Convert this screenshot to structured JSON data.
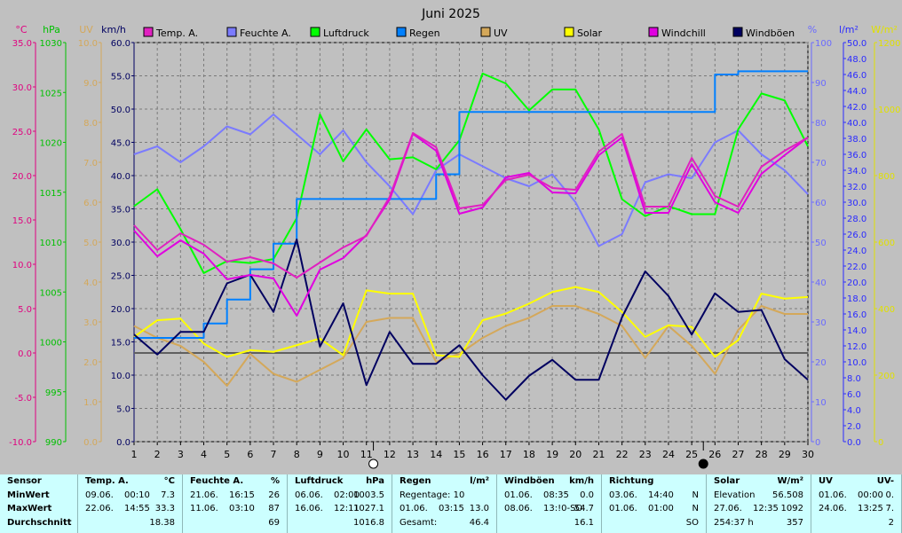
{
  "chart_data": {
    "type": "line",
    "title": "Juni 2025",
    "x": [
      1,
      2,
      3,
      4,
      5,
      6,
      7,
      8,
      9,
      10,
      11,
      12,
      13,
      14,
      15,
      16,
      17,
      18,
      19,
      20,
      21,
      22,
      23,
      24,
      25,
      26,
      27,
      28,
      29,
      30
    ],
    "xlim": [
      1,
      30
    ],
    "markers": [
      {
        "x": 11.3,
        "symbol": "open-circle"
      },
      {
        "x": 25.5,
        "symbol": "filled-circle"
      }
    ],
    "axes": [
      {
        "id": "temp",
        "unit": "°C",
        "min": -10,
        "max": 35,
        "step": 5,
        "decimals": 1,
        "color": "#e0007f"
      },
      {
        "id": "hpa",
        "unit": "hPa",
        "min": 990,
        "max": 1030,
        "step": 5,
        "decimals": 0,
        "color": "#00c000"
      },
      {
        "id": "uv",
        "unit": "UV",
        "min": 0,
        "max": 10,
        "step": 1,
        "decimals": 1,
        "color": "#d4a85a"
      },
      {
        "id": "kmh",
        "unit": "km/h",
        "min": 0,
        "max": 60,
        "step": 5,
        "decimals": 1,
        "color": "#000060"
      },
      {
        "id": "pct",
        "unit": "%",
        "min": 0,
        "max": 100,
        "step": 10,
        "decimals": 0,
        "color": "#6a6aff"
      },
      {
        "id": "rain",
        "unit": "l/m²",
        "min": 0,
        "max": 50,
        "step": 2,
        "decimals": 1,
        "color": "#2a2aff"
      },
      {
        "id": "solar",
        "unit": "W/m²",
        "min": 0,
        "max": 1200,
        "step": 200,
        "decimals": 0,
        "color": "#e0e000"
      }
    ],
    "series": [
      {
        "name": "Temp. A.",
        "axis": "temp",
        "color": "#e020c0",
        "values": [
          14.4,
          11.6,
          13.5,
          12.2,
          10.3,
          10.8,
          10.1,
          8.5,
          10.2,
          11.9,
          13.2,
          17.6,
          24.8,
          23.2,
          16.3,
          16.7,
          19.5,
          20.1,
          18.6,
          18.4,
          22.7,
          24.7,
          16.5,
          16.5,
          22.0,
          17.7,
          16.5,
          21.0,
          22.8,
          24.3
        ]
      },
      {
        "name": "Feuchte A.",
        "axis": "pct",
        "color": "#7b7bff",
        "values": [
          72,
          74,
          70,
          74,
          79,
          77,
          82,
          77,
          72,
          78,
          70,
          64,
          57,
          68,
          72,
          69,
          66,
          64,
          67,
          60,
          49,
          52,
          65,
          67,
          66,
          75,
          78,
          72,
          68,
          62
        ]
      },
      {
        "name": "Luftdruck",
        "axis": "hpa",
        "color": "#00ff00",
        "values": [
          1013.6,
          1015.3,
          1011.3,
          1006.9,
          1008.1,
          1007.9,
          1008.3,
          1012.4,
          1022.8,
          1018.1,
          1021.3,
          1018.3,
          1018.5,
          1017.3,
          1020.2,
          1026.9,
          1025.9,
          1023.2,
          1025.3,
          1025.3,
          1021.3,
          1014.3,
          1012.6,
          1013.6,
          1012.8,
          1012.8,
          1021.3,
          1024.9,
          1024.2,
          1019.6
        ]
      },
      {
        "name": "Regen",
        "axis": "rain",
        "color": "#0080ff",
        "values": [
          13.0,
          13.0,
          13.0,
          14.8,
          17.8,
          21.6,
          24.8,
          30.4,
          30.4,
          30.4,
          30.4,
          30.4,
          30.4,
          33.5,
          41.3,
          41.3,
          41.3,
          41.3,
          41.3,
          41.3,
          41.3,
          41.3,
          41.3,
          41.3,
          41.3,
          46.0,
          46.4,
          46.4,
          46.4,
          46.4
        ]
      },
      {
        "name": "UV",
        "axis": "uv",
        "color": "#d4a85a",
        "values": [
          2.9,
          2.6,
          2.4,
          2.0,
          1.4,
          2.2,
          1.7,
          1.5,
          1.8,
          2.1,
          3.0,
          3.1,
          3.1,
          2.0,
          2.2,
          2.6,
          2.9,
          3.1,
          3.4,
          3.4,
          3.2,
          2.9,
          2.1,
          2.9,
          2.4,
          1.7,
          2.8,
          3.4,
          3.2,
          3.2
        ]
      },
      {
        "name": "Solar",
        "axis": "solar",
        "color": "#ffff00",
        "values": [
          315,
          365,
          370,
          295,
          255,
          275,
          270,
          290,
          310,
          260,
          455,
          445,
          445,
          260,
          255,
          365,
          385,
          415,
          450,
          465,
          450,
          390,
          315,
          350,
          345,
          255,
          305,
          445,
          430,
          435
        ]
      },
      {
        "name": "Windchill",
        "axis": "temp",
        "color": "#e000e0",
        "values": [
          13.8,
          10.9,
          12.7,
          11.2,
          8.3,
          8.8,
          8.4,
          4.2,
          9.4,
          10.7,
          13.3,
          17.3,
          24.7,
          22.8,
          15.7,
          16.4,
          19.8,
          20.3,
          18.1,
          18.0,
          22.3,
          24.3,
          15.8,
          15.8,
          21.3,
          17.0,
          15.8,
          20.2,
          22.3,
          24.3
        ]
      },
      {
        "name": "Windböen",
        "axis": "kmh",
        "color": "#000060",
        "values": [
          16.1,
          13.1,
          16.5,
          16.5,
          23.8,
          25.1,
          19.5,
          30.4,
          14.3,
          20.8,
          8.5,
          16.5,
          11.7,
          11.7,
          14.5,
          10.0,
          6.3,
          9.9,
          12.3,
          9.3,
          9.3,
          18.7,
          25.6,
          21.9,
          16.1,
          22.3,
          19.5,
          19.8,
          12.4,
          9.3
        ]
      }
    ],
    "baseline": {
      "axis": "temp",
      "value": 0.0
    }
  },
  "summary": {
    "headers": [
      {
        "name": "Sensor",
        "unit": ""
      },
      {
        "name": "Temp. A.",
        "unit": "°C"
      },
      {
        "name": "Feuchte A.",
        "unit": "%"
      },
      {
        "name": "Luftdruck",
        "unit": "hPa"
      },
      {
        "name": "Regen",
        "unit": "l/m²"
      },
      {
        "name": "Windböen",
        "unit": "km/h"
      },
      {
        "name": "Richtung",
        "unit": ""
      },
      {
        "name": "Solar",
        "unit": "W/m²"
      },
      {
        "name": "UV",
        "unit": "UV-"
      }
    ],
    "labels": [
      "MinWert",
      "MaxWert",
      "Durchschnitt"
    ],
    "temp": [
      [
        "09.06.",
        "00:10",
        "7.3"
      ],
      [
        "22.06.",
        "14:55",
        "33.3"
      ],
      [
        "",
        "",
        "18.38"
      ]
    ],
    "feuchte": [
      [
        "21.06.",
        "16:15",
        "26"
      ],
      [
        "11.06.",
        "03:10",
        "87"
      ],
      [
        "",
        "",
        "69"
      ]
    ],
    "luftdruck": [
      [
        "06.06.",
        "02:00",
        "1003.5"
      ],
      [
        "16.06.",
        "12:11",
        "1027.1"
      ],
      [
        "",
        "",
        "1016.8"
      ]
    ],
    "regen": [
      [
        "Regentage: 10",
        "",
        ""
      ],
      [
        "01.06.",
        "03:15",
        "13.0"
      ],
      [
        "Gesamt:",
        "",
        "46.4"
      ]
    ],
    "windboeen": [
      [
        "01.06.",
        "08:35",
        "0.0"
      ],
      [
        "08.06.",
        "13:!0-SO",
        "54.7"
      ],
      [
        "",
        "",
        "16.1"
      ]
    ],
    "richtung": [
      [
        "03.06.",
        "14:40",
        "N"
      ],
      [
        "01.06.",
        "01:00",
        "N"
      ],
      [
        "",
        "",
        "SO"
      ]
    ],
    "solar": [
      [
        "Elevation",
        "",
        "56.508"
      ],
      [
        "27.06.",
        "12:35",
        "1092"
      ],
      [
        "254:37 h",
        "",
        "357"
      ]
    ],
    "uv": [
      [
        "01.06.",
        "00:00",
        "0."
      ],
      [
        "24.06.",
        "13:25",
        "7."
      ],
      [
        "",
        "",
        "2"
      ]
    ]
  }
}
